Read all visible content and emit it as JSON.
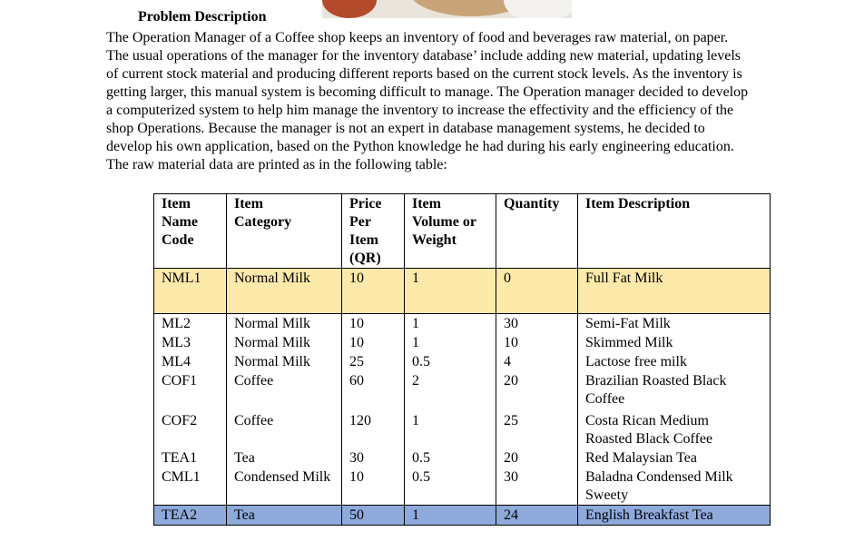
{
  "heading": "Problem Description",
  "paragraph": [
    "The Operation Manager of a Coffee shop keeps an inventory of food and beverages raw material, on paper.",
    "The usual operations of the manager for the inventory database’ include adding new material, updating levels",
    "of current stock material and producing different reports based on the current stock levels. As the inventory is",
    "getting larger, this manual system is becoming difficult to manage. The Operation manager decided to develop",
    "a computerized system to help him manage the inventory to increase the effectivity and the efficiency of the",
    "shop Operations. Because the manager is not an expert in database management systems, he decided to",
    "develop his own application, based on the Python knowledge he had during his early engineering education.",
    "The raw material data are printed as in the following table:"
  ],
  "table": {
    "header": [
      [
        "Item",
        "Name",
        "Code"
      ],
      [
        "Item",
        "Category"
      ],
      [
        "Price",
        "Per",
        "Item",
        "(QR)"
      ],
      [
        "Item",
        "Volume or",
        "Weight"
      ],
      [
        "Quantity"
      ],
      [
        "Item Description"
      ]
    ],
    "rows": [
      [
        "NML1",
        "Normal Milk",
        "10",
        "1",
        "0",
        "Full Fat Milk"
      ],
      [
        "ML2",
        "Normal Milk",
        "10",
        "1",
        "30",
        "Semi-Fat Milk"
      ],
      [
        "ML3",
        "Normal Milk",
        "10",
        "1",
        "10",
        "Skimmed Milk"
      ],
      [
        "ML4",
        "Normal Milk",
        "25",
        "0.5",
        "4",
        "Lactose free milk"
      ],
      [
        "COF1",
        "Coffee",
        "60",
        "2",
        "20",
        "Brazilian Roasted Black Coffee"
      ],
      [
        "COF2",
        "Coffee",
        "120",
        "1",
        "25",
        "Costa Rican Medium Roasted Black Coffee"
      ],
      [
        "TEA1",
        "Tea",
        "30",
        "0.5",
        "20",
        "Red Malaysian Tea"
      ],
      [
        "CML1",
        "Condensed Milk",
        "10",
        "0.5",
        "30",
        "Baladna Condensed Milk Sweety"
      ],
      [
        "TEA2",
        "Tea",
        "50",
        "1",
        "24",
        "English Breakfast Tea"
      ]
    ]
  }
}
